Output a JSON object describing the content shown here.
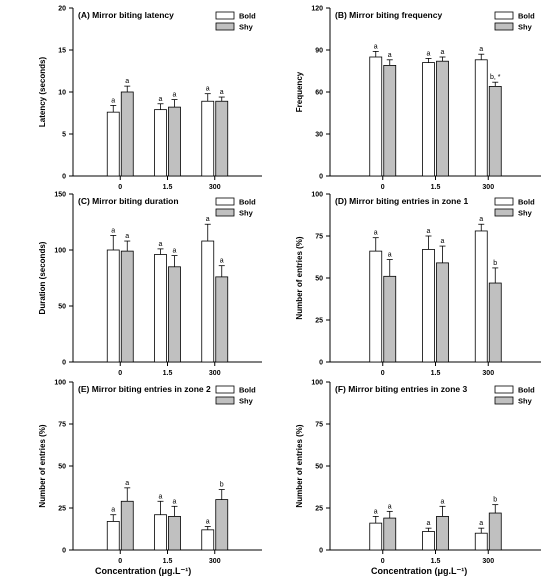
{
  "legend": [
    "Bold",
    "Shy"
  ],
  "colors": {
    "bold": "#ffffff",
    "shy": "#c0c0c0",
    "stroke": "#000000"
  },
  "x_axis_title": "Concentration (μg.L⁻¹)",
  "chart_data": [
    {
      "type": "bar",
      "title": "(A) Mirror biting latency",
      "ylabel": "Latency (seconds)",
      "categories": [
        "0",
        "1.5",
        "300"
      ],
      "ylim": [
        0,
        20
      ],
      "yticks": [
        0,
        5,
        10,
        15,
        20
      ],
      "series": [
        {
          "name": "Bold",
          "values": [
            7.6,
            7.9,
            8.9
          ],
          "errors": [
            0.8,
            0.7,
            0.9
          ],
          "labels": [
            "a",
            "a",
            "a"
          ]
        },
        {
          "name": "Shy",
          "values": [
            10.0,
            8.2,
            8.9
          ],
          "errors": [
            0.7,
            0.9,
            0.5
          ],
          "labels": [
            "a",
            "a",
            "a"
          ]
        }
      ]
    },
    {
      "type": "bar",
      "title": "(B) Mirror biting frequency",
      "ylabel": "Frequency",
      "categories": [
        "0",
        "1.5",
        "300"
      ],
      "ylim": [
        0,
        120
      ],
      "yticks": [
        0,
        30,
        60,
        90,
        120
      ],
      "series": [
        {
          "name": "Bold",
          "values": [
            85,
            81,
            83
          ],
          "errors": [
            4,
            3,
            4
          ],
          "labels": [
            "a",
            "a",
            "a"
          ]
        },
        {
          "name": "Shy",
          "values": [
            79,
            82,
            64
          ],
          "errors": [
            4,
            3,
            3
          ],
          "labels": [
            "a",
            "a",
            "b, *"
          ]
        }
      ]
    },
    {
      "type": "bar",
      "title": "(C) Mirror biting duration",
      "ylabel": "Duration (seconds)",
      "categories": [
        "0",
        "1.5",
        "300"
      ],
      "ylim": [
        0,
        150
      ],
      "yticks": [
        0,
        50,
        100,
        150
      ],
      "series": [
        {
          "name": "Bold",
          "values": [
            100,
            96,
            108
          ],
          "errors": [
            13,
            5,
            15
          ],
          "labels": [
            "a",
            "a",
            "a"
          ]
        },
        {
          "name": "Shy",
          "values": [
            99,
            85,
            76
          ],
          "errors": [
            9,
            10,
            10
          ],
          "labels": [
            "a",
            "a",
            "a"
          ]
        }
      ]
    },
    {
      "type": "bar",
      "title": "(D) Mirror biting entries in zone 1",
      "ylabel": "Number of entries (%)",
      "categories": [
        "0",
        "1.5",
        "300"
      ],
      "ylim": [
        0,
        100
      ],
      "yticks": [
        0,
        25,
        50,
        75,
        100
      ],
      "series": [
        {
          "name": "Bold",
          "values": [
            66,
            67,
            78
          ],
          "errors": [
            8,
            8,
            4
          ],
          "labels": [
            "a",
            "a",
            "a"
          ]
        },
        {
          "name": "Shy",
          "values": [
            51,
            59,
            47
          ],
          "errors": [
            10,
            10,
            9
          ],
          "labels": [
            "a",
            "a",
            "b"
          ]
        }
      ]
    },
    {
      "type": "bar",
      "title": "(E) Mirror biting entries in zone 2",
      "ylabel": "Number of entries (%)",
      "categories": [
        "0",
        "1.5",
        "300"
      ],
      "ylim": [
        0,
        100
      ],
      "yticks": [
        0,
        25,
        50,
        75,
        100
      ],
      "series": [
        {
          "name": "Bold",
          "values": [
            17,
            21,
            12
          ],
          "errors": [
            4,
            8,
            2
          ],
          "labels": [
            "a",
            "a",
            "a"
          ]
        },
        {
          "name": "Shy",
          "values": [
            29,
            20,
            30
          ],
          "errors": [
            8,
            6,
            6
          ],
          "labels": [
            "a",
            "a",
            "b"
          ]
        }
      ]
    },
    {
      "type": "bar",
      "title": "(F) Mirror biting entries in zone 3",
      "ylabel": "Number of entries (%)",
      "categories": [
        "0",
        "1.5",
        "300"
      ],
      "ylim": [
        0,
        100
      ],
      "yticks": [
        0,
        25,
        50,
        75,
        100
      ],
      "series": [
        {
          "name": "Bold",
          "values": [
            16,
            11,
            10
          ],
          "errors": [
            4,
            2,
            3
          ],
          "labels": [
            "a",
            "a",
            "a"
          ]
        },
        {
          "name": "Shy",
          "values": [
            19,
            20,
            22
          ],
          "errors": [
            4,
            6,
            5
          ],
          "labels": [
            "a",
            "a",
            "b"
          ]
        }
      ]
    }
  ]
}
